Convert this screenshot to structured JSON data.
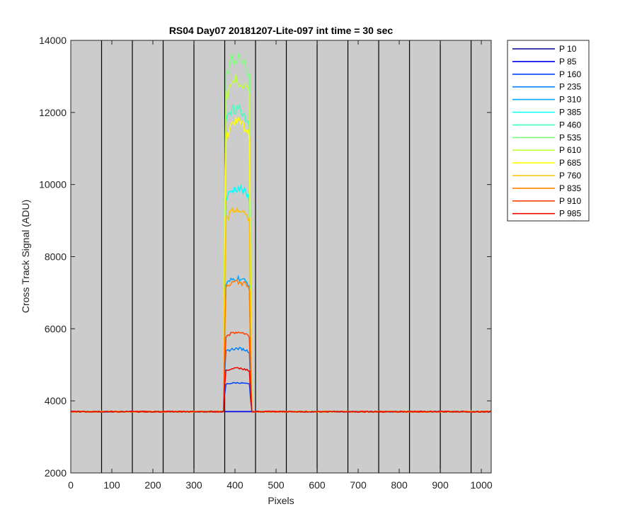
{
  "chart_data": {
    "type": "line",
    "title": "RS04 Day07 20181207-Lite-097 int time = 30 sec",
    "xlabel": "Pixels",
    "ylabel": "Cross Track Signal (ADU)",
    "xlim": [
      0,
      1024
    ],
    "ylim": [
      2000,
      14000
    ],
    "xticks": [
      0,
      100,
      200,
      300,
      400,
      500,
      600,
      700,
      800,
      900,
      1000
    ],
    "yticks": [
      2000,
      4000,
      6000,
      8000,
      10000,
      12000,
      14000
    ],
    "grid": false,
    "background_color": "#cccccc",
    "vertical_lines": [
      75,
      150,
      225,
      300,
      375,
      450,
      525,
      600,
      675,
      750,
      825,
      900,
      975
    ],
    "vertical_line_color": "#000000",
    "baseline": 3700,
    "plateau_x": [
      375,
      437
    ],
    "legend_position": "outside-top-right",
    "series": [
      {
        "name": "P 10",
        "color": "#00008f",
        "plateau": 3700
      },
      {
        "name": "P 85",
        "color": "#0000ef",
        "plateau": 3700
      },
      {
        "name": "P 160",
        "color": "#0040ff",
        "plateau": 4500
      },
      {
        "name": "P 235",
        "color": "#0080ff",
        "plateau": 5450
      },
      {
        "name": "P 310",
        "color": "#00a8ff",
        "plateau": 7400
      },
      {
        "name": "P 385",
        "color": "#00ffff",
        "plateau": 9900
      },
      {
        "name": "P 460",
        "color": "#40ffc0",
        "plateau": 12100
      },
      {
        "name": "P 535",
        "color": "#7fff80",
        "plateau": 13550
      },
      {
        "name": "P 610",
        "color": "#c0ff40",
        "plateau": 12900
      },
      {
        "name": "P 685",
        "color": "#ffff00",
        "plateau": 11700
      },
      {
        "name": "P 760",
        "color": "#ffbf00",
        "plateau": 9300
      },
      {
        "name": "P 835",
        "color": "#ff8000",
        "plateau": 7300
      },
      {
        "name": "P 910",
        "color": "#ff4000",
        "plateau": 5900
      },
      {
        "name": "P 985",
        "color": "#ef0000",
        "plateau": 4900
      }
    ]
  }
}
